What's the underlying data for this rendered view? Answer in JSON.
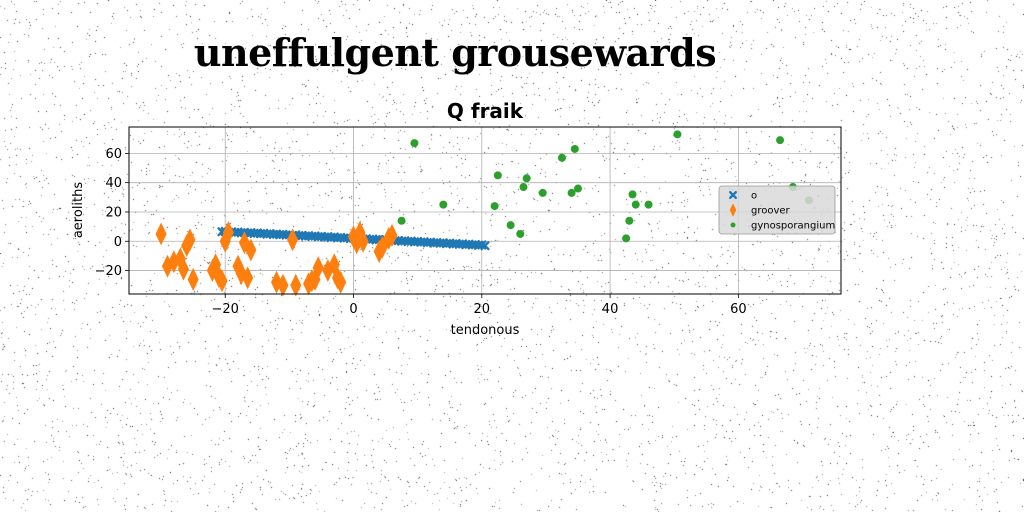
{
  "figure": {
    "suptitle": "uneffulgent grousewards"
  },
  "chart_data": {
    "type": "scatter",
    "title": "Q fraik",
    "xlabel": "tendonous",
    "ylabel": "aeroliths",
    "xlim": [
      -35,
      76
    ],
    "ylim": [
      -36,
      78
    ],
    "xticks": [
      -20,
      0,
      20,
      40,
      60
    ],
    "yticks": [
      -20,
      0,
      20,
      40,
      60
    ],
    "grid": true,
    "legend_position": "right",
    "series": [
      {
        "name": "o",
        "marker": "x",
        "color": "#1f77b4",
        "x": [
          -20.5,
          -20,
          -19.5,
          -19,
          -18.5,
          -18,
          -17.5,
          -17,
          -16.5,
          -16,
          -15.5,
          -15,
          -14.5,
          -14,
          -13.5,
          -13,
          -12.5,
          -12,
          -11.5,
          -11,
          -10.5,
          -10,
          -9.5,
          -9,
          -8.5,
          -8,
          -7.5,
          -7,
          -6.5,
          -6,
          -5.5,
          -5,
          -4.5,
          -4,
          -3.5,
          -3,
          -2.5,
          -2,
          -1.5,
          -1,
          -0.5,
          0,
          0.5,
          1,
          1.5,
          2,
          2.5,
          3,
          3.5,
          4,
          4.5,
          5,
          5.5,
          6,
          6.5,
          7,
          7.5,
          8,
          8.5,
          9,
          9.5,
          10,
          10.5,
          11,
          11.5,
          12,
          12.5,
          13,
          13.5,
          14,
          14.5,
          15,
          15.5,
          16,
          16.5,
          17,
          17.5,
          18,
          18.5,
          19,
          19.5,
          20,
          20.5
        ],
        "y": [
          6.5,
          6.7,
          6.2,
          6.4,
          6.0,
          6.3,
          5.8,
          6.0,
          5.6,
          5.9,
          5.4,
          5.6,
          5.2,
          5.4,
          4.9,
          5.2,
          4.7,
          4.9,
          4.5,
          4.7,
          4.3,
          4.5,
          4.0,
          4.3,
          3.8,
          4.0,
          3.6,
          3.8,
          3.3,
          3.6,
          3.1,
          3.3,
          2.9,
          3.1,
          2.6,
          2.9,
          2.4,
          2.6,
          2.2,
          2.4,
          1.9,
          2.2,
          1.7,
          1.9,
          1.5,
          1.7,
          1.2,
          1.5,
          1.0,
          1.2,
          0.8,
          1.0,
          0.5,
          0.8,
          0.3,
          0.5,
          0.1,
          0.3,
          -0.2,
          0.1,
          -0.4,
          -0.2,
          -0.6,
          -0.4,
          -0.9,
          -0.6,
          -1.1,
          -0.9,
          -1.3,
          -1.1,
          -1.6,
          -1.3,
          -1.8,
          -1.6,
          -2.0,
          -1.8,
          -2.3,
          -2.0,
          -2.5,
          -2.3,
          -2.7,
          -2.5,
          -3.0
        ]
      },
      {
        "name": "groover",
        "marker": "d",
        "color": "#ff7f0e",
        "x": [
          -30,
          -29,
          -28,
          -27,
          -26.5,
          -26,
          -25.5,
          -25,
          -22,
          -21.5,
          -21,
          -20.5,
          -20,
          -19.5,
          -18,
          -17.5,
          -17,
          -16.5,
          -16,
          -12,
          -11,
          -9.5,
          -9,
          -7,
          -6.5,
          -6,
          -5.5,
          -4,
          -3,
          -2.5,
          -2,
          0,
          0.5,
          1,
          1.5,
          4,
          4.5,
          5.5,
          6
        ],
        "y": [
          5,
          -17,
          -14,
          -12,
          -19,
          -3,
          1,
          -26,
          -20,
          -16,
          -24,
          -27,
          0,
          6,
          -17,
          -22,
          -1,
          -25,
          -6,
          -28,
          -30,
          1,
          -30,
          -29,
          -27,
          -26,
          -18,
          -20,
          -16,
          -25,
          -28,
          3,
          -1,
          6,
          0,
          -7,
          -4,
          2,
          4
        ]
      },
      {
        "name": "gynosporangium",
        "marker": "o",
        "color": "#2ca02c",
        "x": [
          7.5,
          9.5,
          14,
          22,
          22.5,
          24.5,
          26,
          26.5,
          27,
          29.5,
          32.5,
          34,
          34.5,
          35,
          42.5,
          43,
          43.5,
          44,
          46,
          50.5,
          66.5,
          68.5,
          71
        ],
        "y": [
          14,
          67,
          25,
          24,
          45,
          11,
          5,
          37,
          43,
          33,
          57,
          33,
          63,
          36,
          2,
          14,
          32,
          25,
          25,
          73,
          69,
          37,
          28
        ]
      }
    ]
  }
}
